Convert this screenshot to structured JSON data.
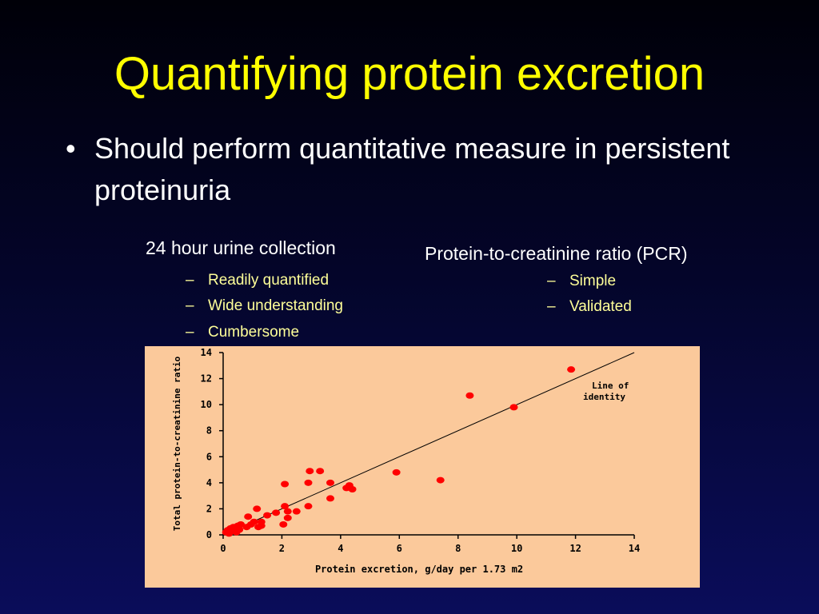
{
  "slide": {
    "title": "Quantifying protein excretion",
    "bullet": "Should perform quantitative measure in persistent proteinuria",
    "left_column": {
      "heading": "24 hour urine collection",
      "items": [
        "Readily quantified",
        "Wide understanding",
        "Cumbersome"
      ]
    },
    "right_column": {
      "heading": "Protein-to-creatinine ratio (PCR)",
      "items": [
        "Simple",
        "Validated"
      ]
    },
    "bullet_glyph": "•",
    "dash_glyph": "–"
  },
  "chart_data": {
    "type": "scatter",
    "title": "",
    "xlabel": "Protein excretion, g/day per 1.73 m2",
    "ylabel": "Total protein-to-creatinine ratio",
    "xlim": [
      0,
      14
    ],
    "ylim": [
      0,
      14
    ],
    "xticks": [
      0,
      2,
      4,
      6,
      8,
      10,
      12,
      14
    ],
    "yticks": [
      0,
      2,
      4,
      6,
      8,
      10,
      12,
      14
    ],
    "grid": false,
    "point_color": "#ff0000",
    "background_color": "#fbc99b",
    "reference_line": {
      "label": "Line of identity",
      "from": [
        0,
        0
      ],
      "to": [
        14,
        14
      ]
    },
    "points": [
      {
        "x": 0.1,
        "y": 0.2
      },
      {
        "x": 0.15,
        "y": 0.35
      },
      {
        "x": 0.2,
        "y": 0.1
      },
      {
        "x": 0.25,
        "y": 0.5
      },
      {
        "x": 0.3,
        "y": 0.3
      },
      {
        "x": 0.35,
        "y": 0.6
      },
      {
        "x": 0.45,
        "y": 0.2
      },
      {
        "x": 0.5,
        "y": 0.7
      },
      {
        "x": 0.55,
        "y": 0.4
      },
      {
        "x": 0.6,
        "y": 0.8
      },
      {
        "x": 0.8,
        "y": 0.6
      },
      {
        "x": 0.85,
        "y": 1.4
      },
      {
        "x": 0.95,
        "y": 0.8
      },
      {
        "x": 1.05,
        "y": 1.0
      },
      {
        "x": 1.15,
        "y": 2.0
      },
      {
        "x": 1.2,
        "y": 0.6
      },
      {
        "x": 1.3,
        "y": 0.7
      },
      {
        "x": 1.3,
        "y": 1.0
      },
      {
        "x": 1.5,
        "y": 1.5
      },
      {
        "x": 1.8,
        "y": 1.7
      },
      {
        "x": 2.05,
        "y": 0.8
      },
      {
        "x": 2.1,
        "y": 2.2
      },
      {
        "x": 2.1,
        "y": 3.9
      },
      {
        "x": 2.2,
        "y": 1.3
      },
      {
        "x": 2.2,
        "y": 1.8
      },
      {
        "x": 2.5,
        "y": 1.8
      },
      {
        "x": 2.9,
        "y": 2.2
      },
      {
        "x": 2.9,
        "y": 4.0
      },
      {
        "x": 2.95,
        "y": 4.9
      },
      {
        "x": 3.3,
        "y": 4.9
      },
      {
        "x": 3.65,
        "y": 2.8
      },
      {
        "x": 3.65,
        "y": 4.0
      },
      {
        "x": 4.2,
        "y": 3.6
      },
      {
        "x": 4.3,
        "y": 3.8
      },
      {
        "x": 4.4,
        "y": 3.5
      },
      {
        "x": 5.9,
        "y": 4.8
      },
      {
        "x": 7.4,
        "y": 4.2
      },
      {
        "x": 8.4,
        "y": 10.7
      },
      {
        "x": 9.9,
        "y": 9.8
      },
      {
        "x": 11.85,
        "y": 12.7
      }
    ]
  }
}
